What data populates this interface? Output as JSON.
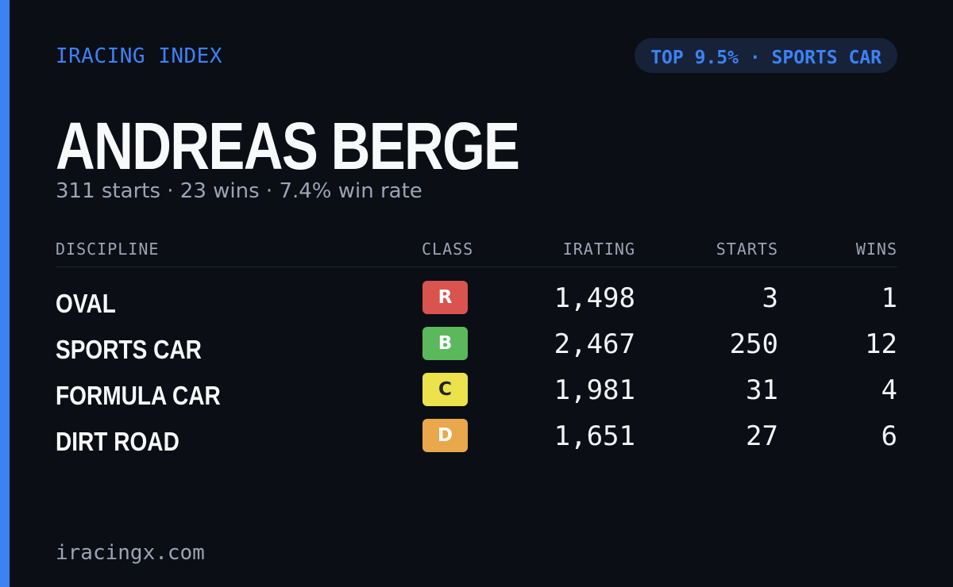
{
  "brand": "IRACING INDEX",
  "badge": "TOP 9.5% · SPORTS CAR",
  "name": "ANDREAS BERGE",
  "summary": "311 starts · 23 wins · 7.4% win rate",
  "table": {
    "headers": [
      "DISCIPLINE",
      "CLASS",
      "IRATING",
      "STARTS",
      "WINS"
    ],
    "rows": [
      {
        "discipline": "OVAL",
        "class": "R",
        "class_color": "#d9534f",
        "class_text_color": "#ffffff",
        "irating": "1,498",
        "starts": "3",
        "wins": "1"
      },
      {
        "discipline": "SPORTS CAR",
        "class": "B",
        "class_color": "#5cb85c",
        "class_text_color": "#ffffff",
        "irating": "2,467",
        "starts": "250",
        "wins": "12"
      },
      {
        "discipline": "FORMULA CAR",
        "class": "C",
        "class_color": "#ebe24c",
        "class_text_color": "#222222",
        "irating": "1,981",
        "starts": "31",
        "wins": "4"
      },
      {
        "discipline": "DIRT ROAD",
        "class": "D",
        "class_color": "#e9a84c",
        "class_text_color": "#ffffff",
        "irating": "1,651",
        "starts": "27",
        "wins": "6"
      }
    ]
  },
  "footer": "iracingx.com"
}
